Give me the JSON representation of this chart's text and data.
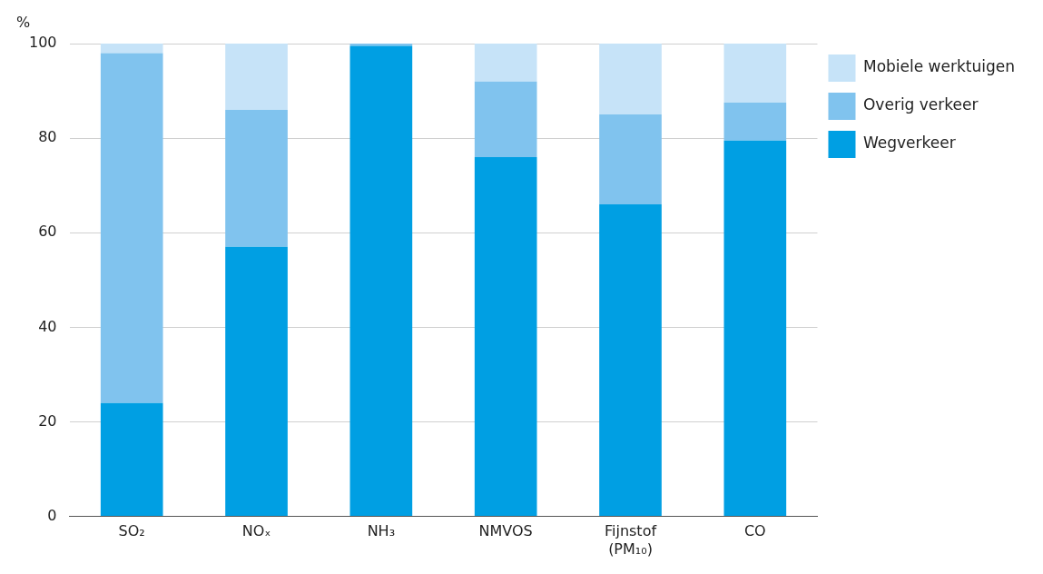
{
  "chart_data": {
    "type": "bar",
    "stacked": true,
    "ylabel": "%",
    "categories": [
      "SO₂",
      "NOₓ",
      "NH₃",
      "NMVOS",
      "Fijnstof (PM₁₀)",
      "CO"
    ],
    "series": [
      {
        "name": "Wegverkeer",
        "color": "#009fe3",
        "values": [
          24,
          57,
          99.5,
          76,
          66,
          79.5
        ]
      },
      {
        "name": "Overig verkeer",
        "color": "#80c3ee",
        "values": [
          74,
          29,
          0.5,
          16,
          19,
          8
        ]
      },
      {
        "name": "Mobiele werktuigen",
        "color": "#c6e3f8",
        "values": [
          2,
          14,
          0,
          8,
          15,
          12.5
        ]
      }
    ],
    "ylim": [
      0,
      100
    ],
    "yticks": [
      0,
      20,
      40,
      60,
      80,
      100
    ],
    "grid": "y",
    "legend": "top right"
  }
}
